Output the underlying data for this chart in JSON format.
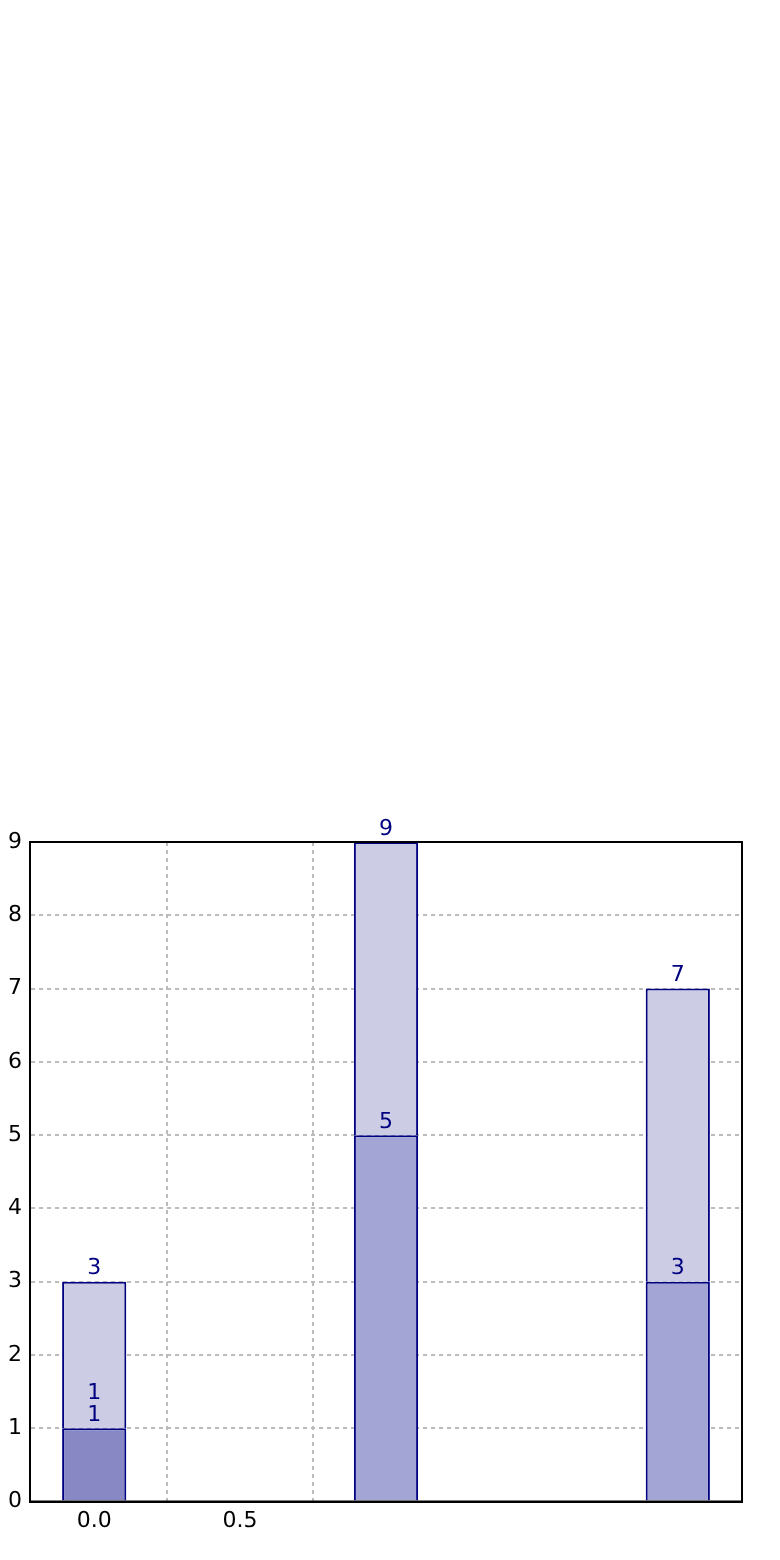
{
  "chart_data": {
    "type": "bar",
    "x": [
      0,
      1,
      2
    ],
    "stacked": true,
    "series": [
      {
        "colors": [
          "#8888c4",
          "#a3a6d4",
          "#a3a6d4"
        ],
        "values": [
          1,
          5,
          3
        ],
        "value_labels": [
          "1",
          "5",
          "3"
        ]
      },
      {
        "color": "#cccce4",
        "values": [
          2,
          4,
          4
        ]
      }
    ],
    "totals": [
      "3",
      "9",
      "7"
    ],
    "annotations": [
      {
        "text": "1",
        "x": 0,
        "y": 1
      }
    ],
    "xlim": [
      -0.22,
      2.22
    ],
    "xticks": [
      {
        "value": 0,
        "label": "0.0"
      },
      {
        "value": 0.5,
        "label": "0.5"
      }
    ],
    "ylim": [
      0,
      9
    ],
    "yticks": [
      0,
      1,
      2,
      3,
      4,
      5,
      6,
      7,
      8,
      9
    ],
    "grid": true
  }
}
